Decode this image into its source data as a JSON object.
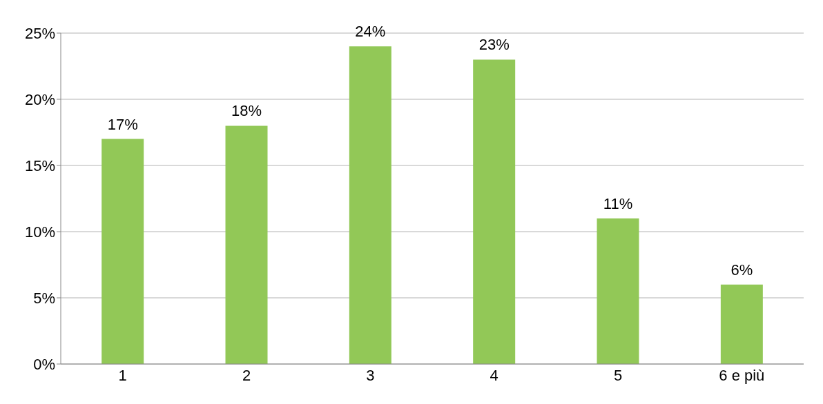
{
  "chart_data": {
    "type": "bar",
    "categories": [
      "1",
      "2",
      "3",
      "4",
      "5",
      "6 e più"
    ],
    "values": [
      17,
      18,
      24,
      23,
      11,
      6
    ],
    "value_labels": [
      "17%",
      "18%",
      "24%",
      "23%",
      "11%",
      "6%"
    ],
    "color": "#92c857",
    "ylim": [
      0,
      25
    ],
    "yticks": [
      {
        "value": 0,
        "label": "0%"
      },
      {
        "value": 5,
        "label": "5%"
      },
      {
        "value": 10,
        "label": "10%"
      },
      {
        "value": 15,
        "label": "15%"
      },
      {
        "value": 20,
        "label": "20%"
      },
      {
        "value": 25,
        "label": "25%"
      }
    ],
    "grid": "y"
  }
}
